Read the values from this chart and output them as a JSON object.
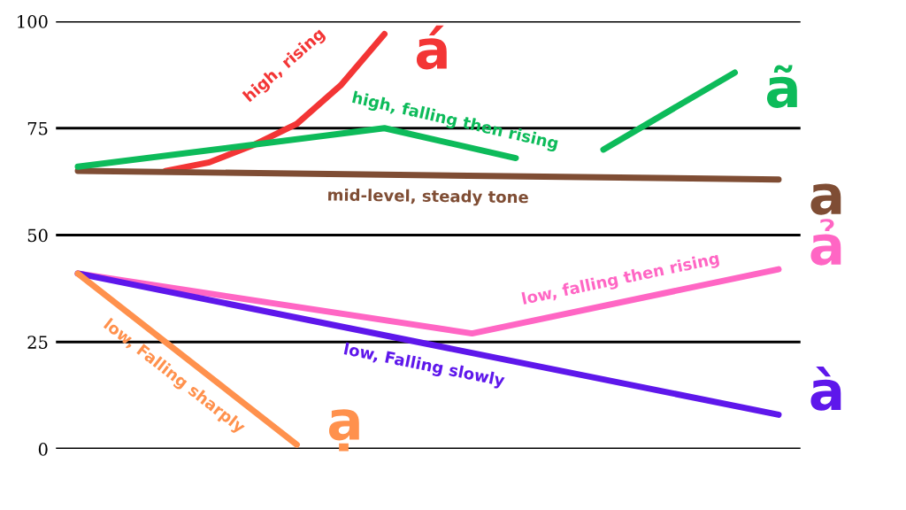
{
  "chart_data": {
    "type": "line",
    "categories": [
      null,
      null,
      null,
      null,
      null,
      null,
      null,
      null,
      null,
      null,
      null,
      null,
      null,
      null,
      null,
      null,
      null
    ],
    "series": [
      {
        "name": "high, rising",
        "color": "#f33535",
        "values": [
          null,
          null,
          65,
          67,
          71,
          76,
          85,
          97,
          null,
          null,
          null,
          null,
          null,
          null,
          null,
          null,
          null
        ]
      },
      {
        "color": "#0dbb5a",
        "values": [
          null,
          null,
          null,
          null,
          null,
          null,
          null,
          null,
          null,
          null,
          null,
          null,
          70,
          null,
          null,
          88,
          null
        ]
      },
      {
        "name": "mid-level, steady tone",
        "color": "#7f4d34",
        "values": [
          65,
          null,
          null,
          null,
          null,
          null,
          null,
          null,
          null,
          null,
          null,
          null,
          null,
          null,
          null,
          null,
          63
        ]
      },
      {
        "name": "low, falling then rising",
        "color": "#ff66c4",
        "values": [
          41,
          null,
          null,
          null,
          null,
          null,
          null,
          null,
          null,
          27,
          null,
          null,
          null,
          null,
          null,
          null,
          42
        ]
      },
      {
        "name": "low, Falling slowly",
        "color": "#5e17eb",
        "values": [
          41,
          null,
          null,
          null,
          null,
          null,
          null,
          null,
          null,
          null,
          null,
          null,
          null,
          null,
          null,
          null,
          8
        ]
      },
      {
        "name": "low, Falling sharply",
        "color": "#ff914d",
        "values": [
          41,
          null,
          null,
          null,
          null,
          1,
          null,
          null,
          null,
          null,
          null,
          null,
          null,
          null,
          null,
          null,
          null
        ]
      },
      {
        "name": "high, falling then rising",
        "color": "#0dbb5a",
        "values": [
          66,
          null,
          null,
          null,
          null,
          null,
          null,
          75,
          null,
          null,
          68,
          null,
          null,
          null,
          null,
          null,
          null
        ]
      }
    ],
    "annotations": [
      "á",
      "ã",
      "a",
      "ả",
      "à",
      "ạ"
    ],
    "ylim": [
      0,
      100
    ],
    "yticks": [
      0,
      25,
      50,
      75,
      100
    ],
    "grid": "y",
    "legend": false,
    "marker": "none",
    "line_style": "solid"
  }
}
